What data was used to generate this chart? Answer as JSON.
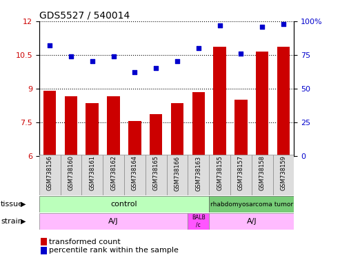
{
  "title": "GDS5527 / 540014",
  "samples": [
    "GSM738156",
    "GSM738160",
    "GSM738161",
    "GSM738162",
    "GSM738164",
    "GSM738165",
    "GSM738166",
    "GSM738163",
    "GSM738155",
    "GSM738157",
    "GSM738158",
    "GSM738159"
  ],
  "transformed_count": [
    8.9,
    8.65,
    8.35,
    8.65,
    7.55,
    7.85,
    8.35,
    8.85,
    10.85,
    8.5,
    10.65,
    10.85
  ],
  "percentile_rank": [
    82,
    74,
    70,
    74,
    62,
    65,
    70,
    80,
    97,
    76,
    96,
    98
  ],
  "bar_color": "#cc0000",
  "dot_color": "#0000cc",
  "ylim_left": [
    6,
    12
  ],
  "ylim_right": [
    0,
    100
  ],
  "yticks_left": [
    6,
    7.5,
    9,
    10.5,
    12
  ],
  "yticks_right_vals": [
    0,
    25,
    50,
    75,
    100
  ],
  "yticks_right_labels": [
    "0",
    "25",
    "50",
    "75",
    "100%"
  ],
  "tissue_ctrl_color": "#bbffbb",
  "tissue_rhab_color": "#77cc77",
  "strain_aj_color": "#ffbbff",
  "strain_balb_color": "#ff55ff",
  "legend_bar_label": "transformed count",
  "legend_dot_label": "percentile rank within the sample",
  "background_color": "#ffffff",
  "plot_bg_color": "#ffffff",
  "title_fontsize": 10,
  "tick_fontsize": 8,
  "annot_fontsize": 8,
  "legend_fontsize": 8
}
